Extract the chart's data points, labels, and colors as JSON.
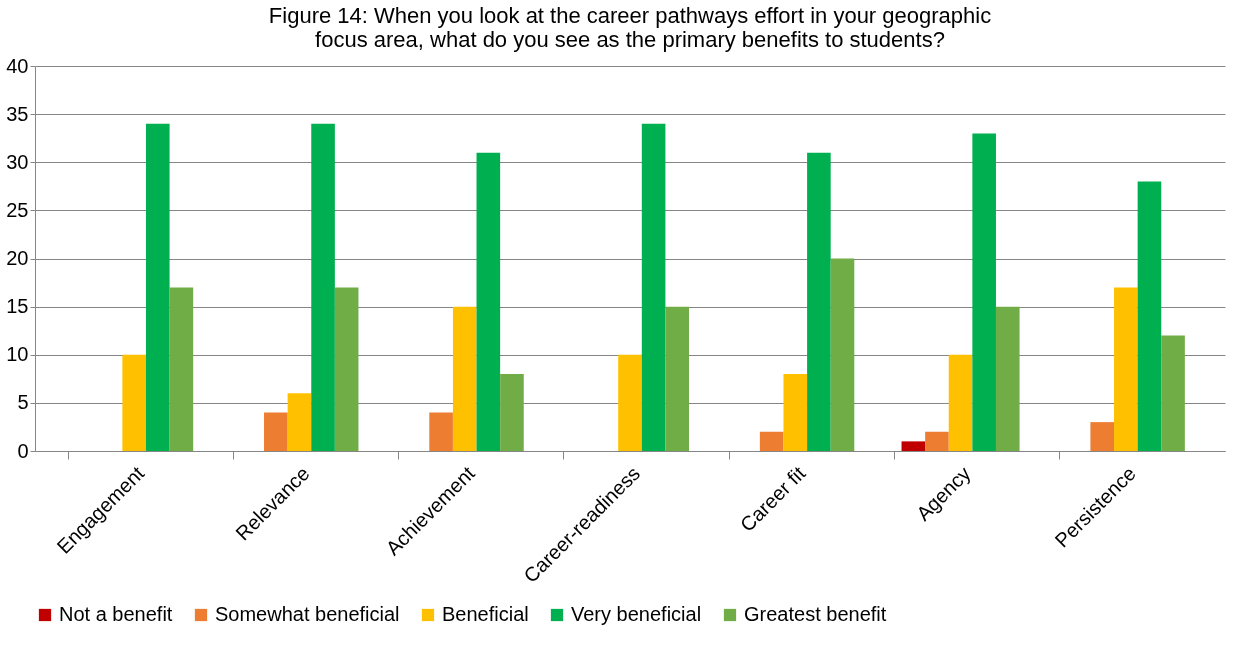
{
  "chart_data": {
    "type": "bar",
    "title": "Figure 14: When you look at the career pathways effort in your geographic\nfocus area, what do you see as the primary benefits to students?",
    "categories": [
      "Engagement",
      "Relevance",
      "Achievement",
      "Career-readiness",
      "Career fit",
      "Agency",
      "Persistence"
    ],
    "series": [
      {
        "name": "Not a benefit",
        "color": "#c00000",
        "values": [
          0,
          0,
          0,
          0,
          0,
          1,
          0
        ]
      },
      {
        "name": "Somewhat beneficial",
        "color": "#ed7d31",
        "values": [
          0,
          4,
          4,
          0,
          2,
          2,
          3
        ]
      },
      {
        "name": "Beneficial",
        "color": "#ffc000",
        "values": [
          10,
          6,
          15,
          10,
          8,
          10,
          17
        ]
      },
      {
        "name": "Very beneficial",
        "color": "#00b050",
        "values": [
          34,
          34,
          31,
          34,
          31,
          33,
          28
        ]
      },
      {
        "name": "Greatest benefit",
        "color": "#70ad47",
        "values": [
          17,
          17,
          8,
          15,
          20,
          15,
          12
        ]
      }
    ],
    "ylim": [
      0,
      40
    ],
    "yticks": [
      0,
      5,
      10,
      15,
      20,
      25,
      30,
      35,
      40
    ],
    "grid": "y",
    "legend": "bottom"
  }
}
